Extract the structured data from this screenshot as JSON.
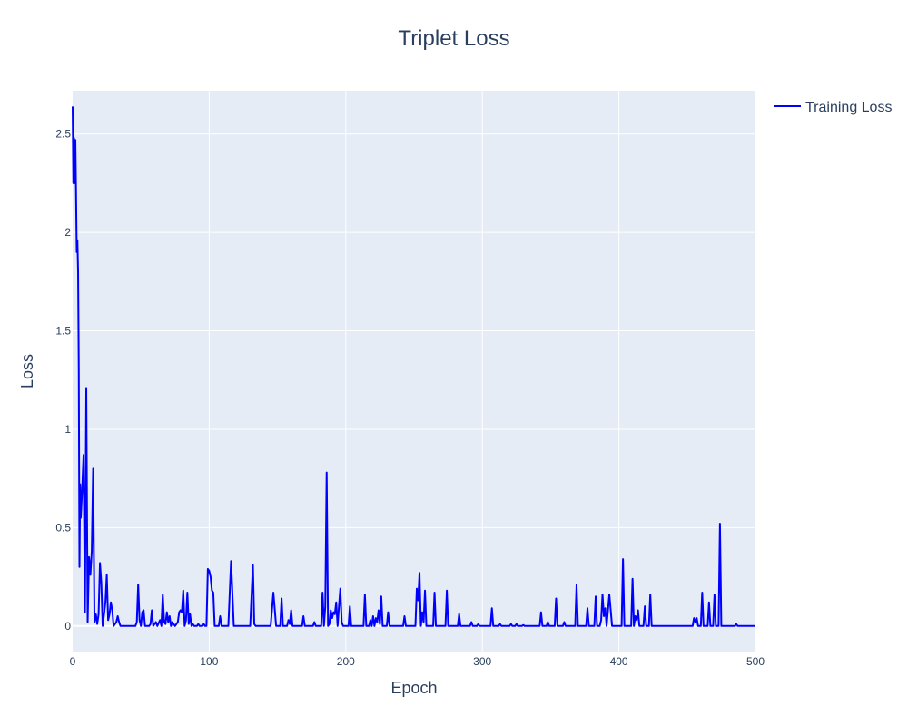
{
  "chart_data": {
    "type": "line",
    "title": "Triplet Loss",
    "xlabel": "Epoch",
    "ylabel": "Loss",
    "xlim": [
      0,
      500
    ],
    "ylim": [
      -0.13,
      2.72
    ],
    "x_ticks": [
      0,
      100,
      200,
      300,
      400,
      500
    ],
    "y_ticks": [
      0,
      0.5,
      1,
      1.5,
      2,
      2.5
    ],
    "x_tick_labels": [
      "0",
      "100",
      "200",
      "300",
      "400",
      "500"
    ],
    "y_tick_labels": [
      "0",
      "0.5",
      "1",
      "1.5",
      "2",
      "2.5"
    ],
    "grid": true,
    "legend_position": "top-right",
    "colors": {
      "line": "#0000ff",
      "plot_bg": "#e5ecf6",
      "grid": "#ffffff",
      "text": "#2a3f5f"
    },
    "series": [
      {
        "name": "Training Loss",
        "points": [
          [
            0,
            2.64
          ],
          [
            0.5,
            2.25
          ],
          [
            1,
            2.48
          ],
          [
            1.5,
            2.25
          ],
          [
            2,
            2.47
          ],
          [
            2.5,
            2.2
          ],
          [
            3,
            1.9
          ],
          [
            3.5,
            1.96
          ],
          [
            4,
            1.8
          ],
          [
            4.5,
            1.3
          ],
          [
            5,
            0.3
          ],
          [
            5.5,
            0.72
          ],
          [
            6,
            0.55
          ],
          [
            7,
            0.7
          ],
          [
            8,
            0.87
          ],
          [
            9,
            0.07
          ],
          [
            10,
            1.21
          ],
          [
            11,
            0.02
          ],
          [
            12,
            0.35
          ],
          [
            13,
            0.26
          ],
          [
            14,
            0.38
          ],
          [
            15,
            0.8
          ],
          [
            16,
            0.02
          ],
          [
            17,
            0.06
          ],
          [
            18,
            0.01
          ],
          [
            19,
            0.06
          ],
          [
            20,
            0.32
          ],
          [
            21,
            0.22
          ],
          [
            22,
            0.0
          ],
          [
            24,
            0.12
          ],
          [
            25,
            0.26
          ],
          [
            26,
            0.03
          ],
          [
            27,
            0.06
          ],
          [
            28,
            0.12
          ],
          [
            29,
            0.08
          ],
          [
            30,
            0.0
          ],
          [
            32,
            0.02
          ],
          [
            33,
            0.05
          ],
          [
            34,
            0.02
          ],
          [
            35,
            0.0
          ],
          [
            46,
            0.0
          ],
          [
            47,
            0.02
          ],
          [
            48,
            0.21
          ],
          [
            49,
            0.03
          ],
          [
            50,
            0.0
          ],
          [
            51,
            0.07
          ],
          [
            52,
            0.08
          ],
          [
            53,
            0.0
          ],
          [
            56,
            0.0
          ],
          [
            57,
            0.01
          ],
          [
            58,
            0.08
          ],
          [
            59,
            0.0
          ],
          [
            61,
            0.02
          ],
          [
            62,
            0.0
          ],
          [
            64,
            0.03
          ],
          [
            65,
            0.0
          ],
          [
            66,
            0.16
          ],
          [
            67,
            0.02
          ],
          [
            68,
            0.01
          ],
          [
            69,
            0.07
          ],
          [
            70,
            0.02
          ],
          [
            71,
            0.05
          ],
          [
            72,
            0.0
          ],
          [
            73,
            0.02
          ],
          [
            74,
            0.01
          ],
          [
            75,
            0.0
          ],
          [
            76,
            0.01
          ],
          [
            77,
            0.02
          ],
          [
            78,
            0.07
          ],
          [
            79,
            0.08
          ],
          [
            80,
            0.07
          ],
          [
            81,
            0.18
          ],
          [
            82,
            0.0
          ],
          [
            83,
            0.03
          ],
          [
            84,
            0.17
          ],
          [
            85,
            0.01
          ],
          [
            86,
            0.06
          ],
          [
            87,
            0.0
          ],
          [
            88,
            0.01
          ],
          [
            89,
            0.0
          ],
          [
            91,
            0.0
          ],
          [
            92,
            0.01
          ],
          [
            93,
            0.0
          ],
          [
            95,
            0.0
          ],
          [
            96,
            0.01
          ],
          [
            97,
            0.0
          ],
          [
            98,
            0.0
          ],
          [
            99,
            0.29
          ],
          [
            100,
            0.28
          ],
          [
            101,
            0.25
          ],
          [
            102,
            0.18
          ],
          [
            103,
            0.17
          ],
          [
            104,
            0.0
          ],
          [
            107,
            0.0
          ],
          [
            108,
            0.05
          ],
          [
            109,
            0.0
          ],
          [
            114,
            0.0
          ],
          [
            116,
            0.33
          ],
          [
            118,
            0.0
          ],
          [
            130,
            0.0
          ],
          [
            132,
            0.31
          ],
          [
            133,
            0.01
          ],
          [
            134,
            0.0
          ],
          [
            145,
            0.0
          ],
          [
            147,
            0.17
          ],
          [
            149,
            0.0
          ],
          [
            152,
            0.0
          ],
          [
            153,
            0.14
          ],
          [
            154,
            0.0
          ],
          [
            157,
            0.0
          ],
          [
            158,
            0.03
          ],
          [
            159,
            0.01
          ],
          [
            160,
            0.08
          ],
          [
            161,
            0.0
          ],
          [
            168,
            0.0
          ],
          [
            169,
            0.05
          ],
          [
            170,
            0.0
          ],
          [
            176,
            0.0
          ],
          [
            177,
            0.02
          ],
          [
            178,
            0.0
          ],
          [
            182,
            0.0
          ],
          [
            183,
            0.17
          ],
          [
            184,
            0.0
          ],
          [
            185,
            0.1
          ],
          [
            186,
            0.78
          ],
          [
            187,
            0.0
          ],
          [
            188,
            0.01
          ],
          [
            189,
            0.08
          ],
          [
            190,
            0.04
          ],
          [
            191,
            0.07
          ],
          [
            192,
            0.06
          ],
          [
            193,
            0.12
          ],
          [
            194,
            0.0
          ],
          [
            195,
            0.1
          ],
          [
            196,
            0.19
          ],
          [
            197,
            0.02
          ],
          [
            198,
            0.0
          ],
          [
            202,
            0.0
          ],
          [
            203,
            0.1
          ],
          [
            204,
            0.0
          ],
          [
            213,
            0.0
          ],
          [
            214,
            0.16
          ],
          [
            215,
            0.0
          ],
          [
            217,
            0.0
          ],
          [
            218,
            0.03
          ],
          [
            219,
            0.0
          ],
          [
            220,
            0.05
          ],
          [
            221,
            0.0
          ],
          [
            222,
            0.04
          ],
          [
            223,
            0.02
          ],
          [
            224,
            0.08
          ],
          [
            225,
            0.01
          ],
          [
            226,
            0.15
          ],
          [
            227,
            0.0
          ],
          [
            230,
            0.0
          ],
          [
            231,
            0.07
          ],
          [
            232,
            0.0
          ],
          [
            242,
            0.0
          ],
          [
            243,
            0.05
          ],
          [
            244,
            0.0
          ],
          [
            251,
            0.0
          ],
          [
            252,
            0.19
          ],
          [
            253,
            0.13
          ],
          [
            254,
            0.27
          ],
          [
            255,
            0.0
          ],
          [
            256,
            0.07
          ],
          [
            257,
            0.02
          ],
          [
            258,
            0.18
          ],
          [
            259,
            0.0
          ],
          [
            264,
            0.0
          ],
          [
            265,
            0.17
          ],
          [
            266,
            0.0
          ],
          [
            273,
            0.0
          ],
          [
            274,
            0.18
          ],
          [
            275,
            0.0
          ],
          [
            282,
            0.0
          ],
          [
            283,
            0.06
          ],
          [
            284,
            0.0
          ],
          [
            291,
            0.0
          ],
          [
            292,
            0.02
          ],
          [
            293,
            0.0
          ],
          [
            296,
            0.0
          ],
          [
            297,
            0.01
          ],
          [
            298,
            0.0
          ],
          [
            306,
            0.0
          ],
          [
            307,
            0.09
          ],
          [
            308,
            0.0
          ],
          [
            312,
            0.0
          ],
          [
            313,
            0.01
          ],
          [
            314,
            0.0
          ],
          [
            320,
            0.0
          ],
          [
            321,
            0.01
          ],
          [
            322,
            0.0
          ],
          [
            324,
            0.0
          ],
          [
            325,
            0.01
          ],
          [
            326,
            0.0
          ],
          [
            329,
            0.0
          ],
          [
            330,
            0.005
          ],
          [
            331,
            0.0
          ],
          [
            342,
            0.0
          ],
          [
            343,
            0.07
          ],
          [
            344,
            0.0
          ],
          [
            347,
            0.0
          ],
          [
            348,
            0.02
          ],
          [
            349,
            0.0
          ],
          [
            353,
            0.0
          ],
          [
            354,
            0.14
          ],
          [
            355,
            0.0
          ],
          [
            359,
            0.0
          ],
          [
            360,
            0.02
          ],
          [
            361,
            0.0
          ],
          [
            368,
            0.0
          ],
          [
            369,
            0.21
          ],
          [
            370,
            0.0
          ],
          [
            376,
            0.0
          ],
          [
            377,
            0.09
          ],
          [
            378,
            0.0
          ],
          [
            382,
            0.0
          ],
          [
            383,
            0.15
          ],
          [
            384,
            0.0
          ],
          [
            386,
            0.0
          ],
          [
            387,
            0.03
          ],
          [
            388,
            0.16
          ],
          [
            389,
            0.05
          ],
          [
            390,
            0.09
          ],
          [
            391,
            0.0
          ],
          [
            393,
            0.16
          ],
          [
            394,
            0.08
          ],
          [
            395,
            0.0
          ],
          [
            402,
            0.0
          ],
          [
            403,
            0.34
          ],
          [
            404,
            0.0
          ],
          [
            409,
            0.0
          ],
          [
            410,
            0.24
          ],
          [
            411,
            0.0
          ],
          [
            412,
            0.05
          ],
          [
            413,
            0.03
          ],
          [
            414,
            0.08
          ],
          [
            415,
            0.0
          ],
          [
            418,
            0.0
          ],
          [
            419,
            0.1
          ],
          [
            420,
            0.0
          ],
          [
            422,
            0.0
          ],
          [
            423,
            0.16
          ],
          [
            424,
            0.0
          ],
          [
            454,
            0.0
          ],
          [
            455,
            0.04
          ],
          [
            456,
            0.02
          ],
          [
            457,
            0.04
          ],
          [
            458,
            0.0
          ],
          [
            460,
            0.0
          ],
          [
            461,
            0.17
          ],
          [
            462,
            0.0
          ],
          [
            465,
            0.0
          ],
          [
            466,
            0.12
          ],
          [
            467,
            0.0
          ],
          [
            469,
            0.0
          ],
          [
            470,
            0.16
          ],
          [
            471,
            0.0
          ],
          [
            473,
            0.0
          ],
          [
            474,
            0.52
          ],
          [
            475,
            0.0
          ],
          [
            485,
            0.0
          ],
          [
            486,
            0.01
          ],
          [
            487,
            0.0
          ],
          [
            500,
            0.0
          ]
        ]
      }
    ]
  }
}
